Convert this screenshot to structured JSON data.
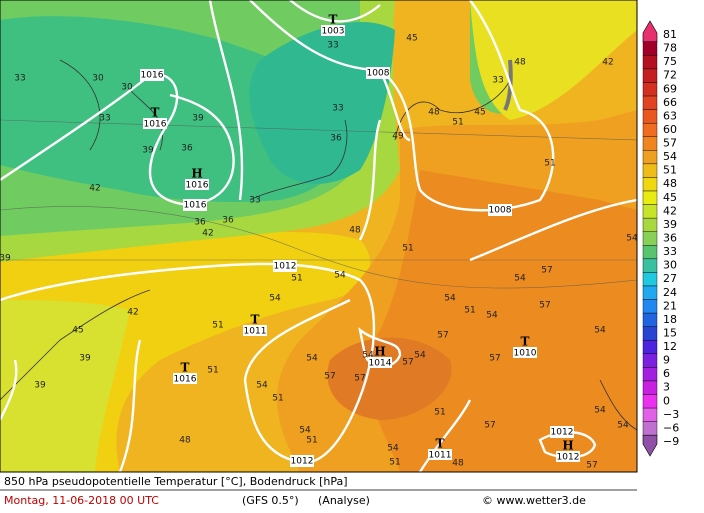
{
  "footer": {
    "title": "850 hPa pseudopotentielle Temperatur [°C], Bodendruck [hPa]",
    "date": "Montag, 11-06-2018  00 UTC",
    "model": "(GFS 0.5°)",
    "run": "(Analyse)",
    "source": "© www.wetter3.de"
  },
  "legend": {
    "labels": [
      "81",
      "78",
      "75",
      "72",
      "69",
      "66",
      "63",
      "60",
      "57",
      "54",
      "51",
      "48",
      "45",
      "42",
      "39",
      "36",
      "33",
      "30",
      "27",
      "24",
      "21",
      "18",
      "15",
      "12",
      "9",
      "6",
      "3",
      "0",
      "−3",
      "−6",
      "−9"
    ],
    "colors": [
      "#e8306e",
      "#a00028",
      "#b41020",
      "#c42020",
      "#d43020",
      "#e04420",
      "#e85820",
      "#f06c20",
      "#f08420",
      "#f0a020",
      "#f0bc18",
      "#f0d810",
      "#e8ec10",
      "#c8e428",
      "#a8d840",
      "#88d058",
      "#58c470",
      "#38c0a0",
      "#20c8e0",
      "#20a8f0",
      "#2088f0",
      "#2064e0",
      "#2844d0",
      "#4c24e0",
      "#7c20e0",
      "#a420e0",
      "#c820e0",
      "#ec30f0",
      "#e060e8",
      "#c070d0",
      "#9050a8"
    ]
  },
  "pressure_centers": [
    {
      "symbol": "T",
      "value": "1003"
    },
    {
      "symbol": "T",
      "value": "1016"
    },
    {
      "symbol": "H",
      "value": "1016"
    },
    {
      "symbol": "T",
      "value": "1011"
    },
    {
      "symbol": "T",
      "value": "1016"
    },
    {
      "symbol": "H",
      "value": "1014"
    },
    {
      "symbol": "T",
      "value": "1010"
    },
    {
      "symbol": "T",
      "value": "1011"
    },
    {
      "symbol": "H",
      "value": "1012"
    }
  ],
  "isobar_labels": [
    "1016",
    "1008",
    "1016",
    "1008",
    "1012",
    "1012",
    "1012"
  ],
  "temperature_labels": [
    "33",
    "30",
    "30",
    "33",
    "39",
    "36",
    "39",
    "42",
    "36",
    "33",
    "36",
    "42",
    "39",
    "33",
    "36",
    "33",
    "45",
    "48",
    "51",
    "49",
    "48",
    "51",
    "51",
    "45",
    "33",
    "48",
    "42",
    "54",
    "54",
    "51",
    "54",
    "51",
    "45",
    "42",
    "39",
    "39",
    "51",
    "54",
    "51",
    "54",
    "57",
    "54",
    "57",
    "54",
    "57",
    "54",
    "57",
    "54",
    "51",
    "54",
    "57",
    "54",
    "57",
    "51",
    "57",
    "48",
    "54",
    "54",
    "57",
    "51",
    "54",
    "48",
    "51",
    "54",
    "57"
  ]
}
